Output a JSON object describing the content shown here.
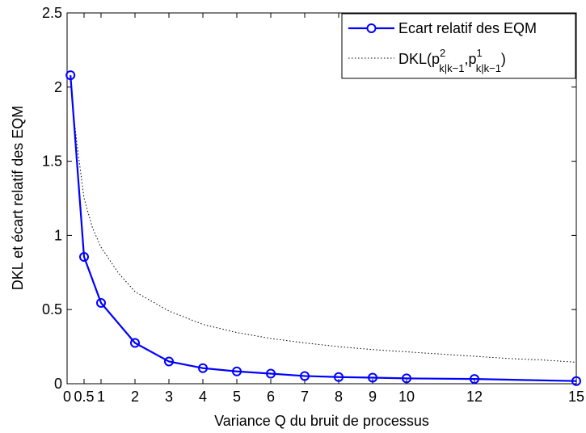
{
  "chart_data": {
    "type": "line",
    "xlabel": "Variance Q du bruit de processus",
    "ylabel": "DKL et écart relatif des EQM",
    "xlim": [
      0,
      15
    ],
    "ylim": [
      0,
      2.5
    ],
    "xticks": [
      0,
      0.5,
      1,
      2,
      3,
      4,
      5,
      6,
      7,
      8,
      9,
      10,
      12,
      15
    ],
    "xtick_labels": [
      "0",
      "0.5",
      "1",
      "2",
      "3",
      "4",
      "5",
      "6",
      "7",
      "8",
      "9",
      "10",
      "12",
      "15"
    ],
    "yticks": [
      0,
      0.5,
      1,
      1.5,
      2,
      2.5
    ],
    "ytick_labels": [
      "0",
      "0.5",
      "1",
      "1.5",
      "2",
      "2.5"
    ],
    "grid": false,
    "legend_position": "top-right",
    "series": [
      {
        "name": "Ecart relatif des EQM",
        "style": "solid-circle-markers",
        "color": "#0000ff",
        "x": [
          0.1,
          0.5,
          1,
          2,
          3,
          4,
          5,
          6,
          7,
          8,
          9,
          10,
          12,
          15
        ],
        "y": [
          2.08,
          0.855,
          0.545,
          0.275,
          0.15,
          0.105,
          0.083,
          0.068,
          0.052,
          0.045,
          0.041,
          0.036,
          0.032,
          0.018
        ]
      },
      {
        "name": "DKL(p",
        "name_parts": {
          "prefix": "DKL(p",
          "sup1": "2",
          "sub1": "k|k−1",
          "mid": ",p",
          "sup2": "1",
          "sub2": "k|k−1",
          "suffix": ")"
        },
        "style": "dotted",
        "color": "#000000",
        "x": [
          0.1,
          0.2,
          0.3,
          0.5,
          0.75,
          1,
          1.5,
          2,
          3,
          4,
          5,
          6,
          7,
          8,
          9,
          10,
          11,
          12,
          13,
          14,
          15
        ],
        "y": [
          2.05,
          1.8,
          1.6,
          1.25,
          1.05,
          0.92,
          0.75,
          0.62,
          0.49,
          0.4,
          0.345,
          0.305,
          0.275,
          0.25,
          0.23,
          0.215,
          0.2,
          0.185,
          0.17,
          0.16,
          0.145
        ]
      }
    ]
  }
}
